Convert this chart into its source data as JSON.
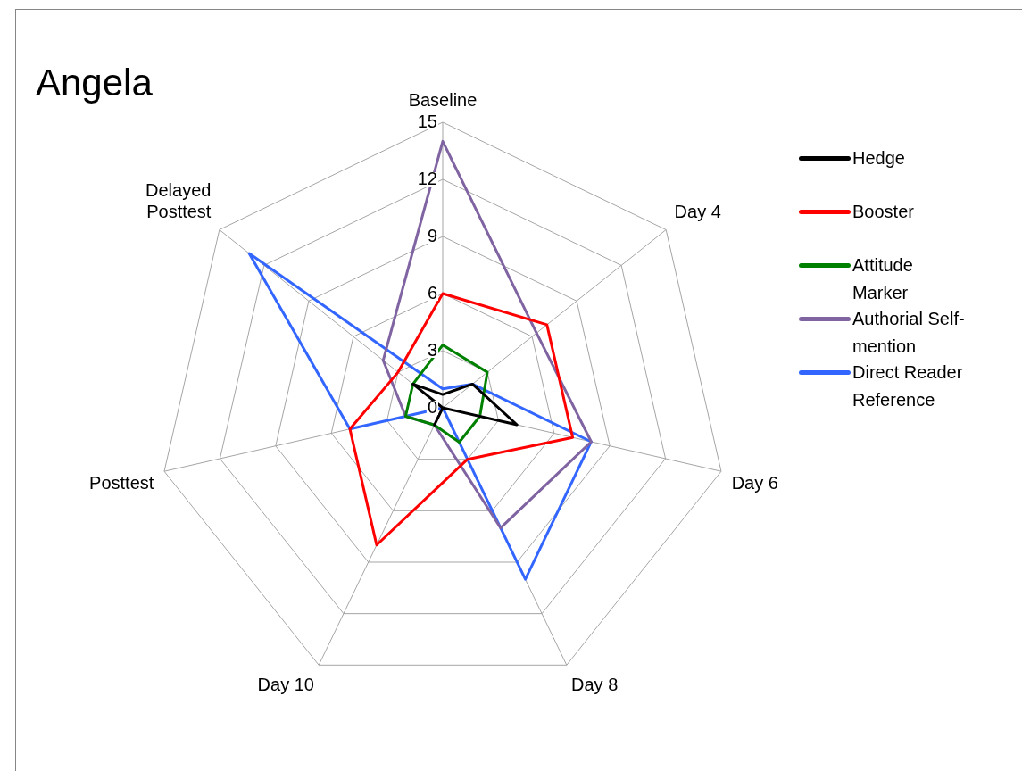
{
  "chart_data": {
    "type": "radar",
    "title": "Angela",
    "categories": [
      "Baseline",
      "Day 4",
      "Day 6",
      "Day 8",
      "Day 10",
      "Posttest",
      "Delayed Posttest"
    ],
    "series": [
      {
        "name": "Hedge",
        "color": "#000000",
        "values": [
          0.7,
          2,
          4,
          0,
          1,
          0,
          2
        ]
      },
      {
        "name": "Booster",
        "color": "#ff0000",
        "values": [
          6,
          7,
          7,
          3,
          8,
          5,
          3
        ]
      },
      {
        "name": "Attitude Marker",
        "color": "#008000",
        "values": [
          3.3,
          3,
          2,
          2,
          1,
          2,
          2
        ]
      },
      {
        "name": "Authorial Self-mention",
        "color": "#8064a2",
        "values": [
          14,
          6.3,
          8,
          7,
          1,
          2,
          4
        ]
      },
      {
        "name": "Direct Reader Reference",
        "color": "#3366ff",
        "values": [
          1,
          2,
          8,
          10,
          0,
          5,
          13
        ]
      }
    ],
    "ylim": [
      0,
      15
    ],
    "yticks": [
      0,
      3,
      6,
      9,
      12,
      15
    ],
    "grid": true,
    "legend": "right",
    "marker": "none",
    "line_style": "solid"
  }
}
